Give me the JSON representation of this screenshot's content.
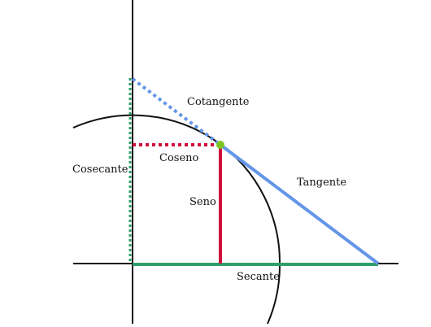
{
  "labels": {
    "cotangente": "Cotangente",
    "coseno": "Coseno",
    "cosecante": "Cosecante",
    "seno": "Seno",
    "tangente": "Tangente",
    "secante": "Secante"
  },
  "colors": {
    "axis": "#111111",
    "circle": "#111111",
    "sine": "#d0103a",
    "cosine": "#d0103a",
    "tangent": "#6495e8",
    "cotangent": "#6495e8",
    "secant": "#2f9e6b",
    "cosecant": "#2f9e6b",
    "point": "#7cc520"
  }
}
